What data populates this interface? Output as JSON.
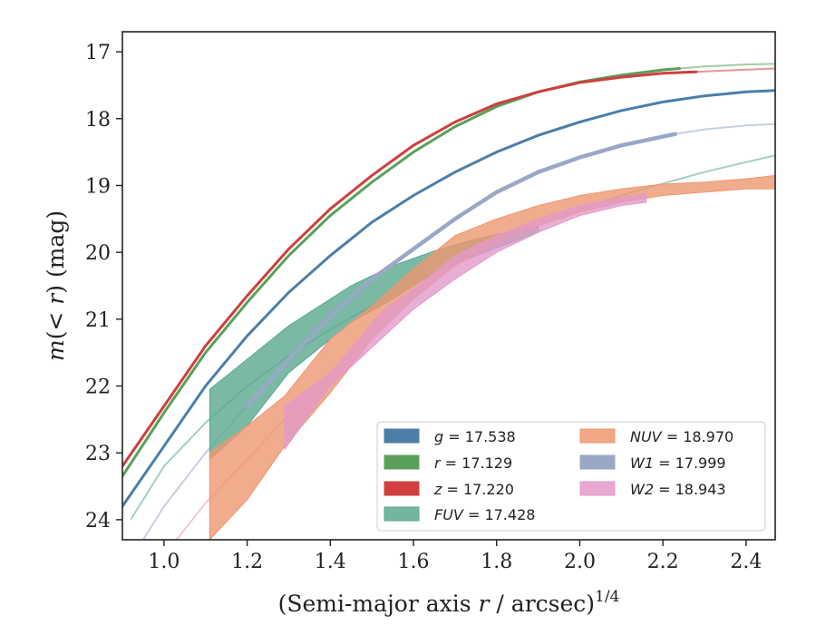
{
  "chart_data": {
    "type": "line",
    "xlabel": "(Semi-major axis r / arcsec)",
    "xlabel_italic_symbol": "r",
    "xlabel_exponent": "1/4",
    "ylabel": "m(< r) (mag)",
    "xlim": [
      0.9,
      2.47
    ],
    "ylim": [
      24.3,
      16.7
    ],
    "y_inverted": true,
    "x_ticks": [
      "1.0",
      "1.2",
      "1.4",
      "1.6",
      "1.8",
      "2.0",
      "2.2",
      "2.4"
    ],
    "y_ticks": [
      "17",
      "18",
      "19",
      "20",
      "21",
      "22",
      "23",
      "24"
    ],
    "grid": false,
    "legend_placement": "lower-right",
    "legend_columns": 2,
    "series": [
      {
        "name": "g = 17.538",
        "band": "g",
        "value": "17.538",
        "color": "#4c7ea8",
        "kind": "line",
        "data": [
          [
            0.9,
            23.8
          ],
          [
            1.0,
            22.9
          ],
          [
            1.1,
            22.0
          ],
          [
            1.2,
            21.25
          ],
          [
            1.3,
            20.6
          ],
          [
            1.4,
            20.05
          ],
          [
            1.5,
            19.55
          ],
          [
            1.6,
            19.15
          ],
          [
            1.7,
            18.8
          ],
          [
            1.8,
            18.5
          ],
          [
            1.9,
            18.25
          ],
          [
            2.0,
            18.05
          ],
          [
            2.1,
            17.88
          ],
          [
            2.2,
            17.75
          ],
          [
            2.3,
            17.66
          ],
          [
            2.4,
            17.6
          ],
          [
            2.47,
            17.58
          ]
        ]
      },
      {
        "name": "r = 17.129",
        "band": "r",
        "value": "17.129",
        "color": "#5aa05a",
        "kind": "line",
        "data": [
          [
            0.9,
            23.35
          ],
          [
            1.0,
            22.4
          ],
          [
            1.1,
            21.5
          ],
          [
            1.2,
            20.75
          ],
          [
            1.3,
            20.05
          ],
          [
            1.4,
            19.45
          ],
          [
            1.5,
            18.95
          ],
          [
            1.6,
            18.5
          ],
          [
            1.7,
            18.12
          ],
          [
            1.8,
            17.82
          ],
          [
            1.9,
            17.6
          ],
          [
            2.0,
            17.45
          ],
          [
            2.1,
            17.35
          ],
          [
            2.2,
            17.27
          ],
          [
            2.24,
            17.25
          ]
        ],
        "extrapolation": [
          [
            2.24,
            17.25
          ],
          [
            2.3,
            17.22
          ],
          [
            2.4,
            17.19
          ],
          [
            2.47,
            17.18
          ]
        ]
      },
      {
        "name": "z = 17.220",
        "band": "z",
        "value": "17.220",
        "color": "#cf3f3f",
        "kind": "line",
        "data": [
          [
            0.9,
            23.2
          ],
          [
            1.0,
            22.3
          ],
          [
            1.1,
            21.4
          ],
          [
            1.2,
            20.65
          ],
          [
            1.3,
            19.95
          ],
          [
            1.4,
            19.35
          ],
          [
            1.5,
            18.85
          ],
          [
            1.6,
            18.4
          ],
          [
            1.7,
            18.05
          ],
          [
            1.8,
            17.78
          ],
          [
            1.9,
            17.6
          ],
          [
            2.0,
            17.46
          ],
          [
            2.1,
            17.38
          ],
          [
            2.2,
            17.32
          ],
          [
            2.28,
            17.3
          ]
        ],
        "extrapolation": [
          [
            2.28,
            17.3
          ],
          [
            2.35,
            17.28
          ],
          [
            2.47,
            17.25
          ]
        ]
      },
      {
        "name": "FUV = 17.428",
        "band": "FUV",
        "value": "17.428",
        "color": "#5aa88e",
        "kind": "band",
        "data_x": [
          1.11,
          1.2,
          1.3,
          1.45,
          1.55,
          1.65,
          1.75,
          1.9
        ],
        "data_upper": [
          22.05,
          21.6,
          21.1,
          20.5,
          20.2,
          19.98,
          19.8,
          19.6
        ],
        "data_lower": [
          23.1,
          22.6,
          21.8,
          21.05,
          20.7,
          20.3,
          20.05,
          19.7
        ],
        "extrapolation": [
          [
            0.92,
            24.0
          ],
          [
            1.0,
            23.2
          ],
          [
            1.1,
            22.55
          ],
          [
            1.2,
            22.0
          ],
          [
            1.3,
            21.55
          ],
          [
            1.4,
            21.15
          ],
          [
            1.5,
            20.8
          ],
          [
            1.6,
            20.45
          ],
          [
            1.7,
            20.15
          ],
          [
            1.8,
            19.85
          ],
          [
            1.9,
            19.6
          ],
          [
            2.0,
            19.35
          ],
          [
            2.1,
            19.15
          ],
          [
            2.2,
            18.97
          ],
          [
            2.3,
            18.8
          ],
          [
            2.4,
            18.65
          ],
          [
            2.47,
            18.55
          ]
        ]
      },
      {
        "name": "NUV = 18.970",
        "band": "NUV",
        "value": "18.970",
        "color": "#ee9770",
        "kind": "band",
        "data_x": [
          1.11,
          1.2,
          1.29,
          1.4,
          1.5,
          1.6,
          1.7,
          1.8,
          1.9,
          2.0,
          2.1,
          2.2,
          2.3,
          2.4,
          2.47
        ],
        "data_upper": [
          23.0,
          22.6,
          22.15,
          21.3,
          20.8,
          20.25,
          19.75,
          19.5,
          19.3,
          19.15,
          19.05,
          18.98,
          18.95,
          18.9,
          18.85
        ],
        "data_lower": [
          24.3,
          23.7,
          22.9,
          22.1,
          21.3,
          20.7,
          20.2,
          19.85,
          19.6,
          19.4,
          19.25,
          19.15,
          19.1,
          19.05,
          19.05
        ],
        "extrapolation": []
      },
      {
        "name": "W1 = 17.999",
        "band": "W1",
        "value": "17.999",
        "color": "#9aa8c8",
        "kind": "line",
        "data": [
          [
            1.2,
            22.3
          ],
          [
            1.3,
            21.6
          ],
          [
            1.4,
            20.95
          ],
          [
            1.5,
            20.4
          ],
          [
            1.6,
            19.95
          ],
          [
            1.7,
            19.5
          ],
          [
            1.8,
            19.1
          ],
          [
            1.9,
            18.8
          ],
          [
            2.0,
            18.58
          ],
          [
            2.1,
            18.4
          ],
          [
            2.23,
            18.23
          ]
        ],
        "extrapolation": [
          [
            0.95,
            24.3
          ],
          [
            1.0,
            23.8
          ],
          [
            1.1,
            23.0
          ],
          [
            1.2,
            22.3
          ],
          [
            1.3,
            21.6
          ],
          [
            1.4,
            20.95
          ],
          [
            1.5,
            20.4
          ],
          [
            1.6,
            19.95
          ],
          [
            1.7,
            19.5
          ],
          [
            1.8,
            19.1
          ],
          [
            1.9,
            18.8
          ],
          [
            2.0,
            18.58
          ],
          [
            2.1,
            18.4
          ],
          [
            2.23,
            18.23
          ],
          [
            2.3,
            18.16
          ],
          [
            2.4,
            18.1
          ],
          [
            2.47,
            18.08
          ]
        ]
      },
      {
        "name": "W2 = 18.943",
        "band": "W2",
        "value": "18.943",
        "color": "#e49ac8",
        "kind": "band",
        "data_x": [
          1.29,
          1.4,
          1.53,
          1.6,
          1.7,
          1.8,
          1.9,
          2.0,
          2.1,
          2.16
        ],
        "data_upper": [
          22.3,
          21.8,
          20.85,
          20.55,
          20.05,
          19.75,
          19.5,
          19.3,
          19.18,
          19.12
        ],
        "data_lower": [
          22.95,
          22.0,
          21.25,
          20.85,
          20.4,
          20.0,
          19.7,
          19.45,
          19.3,
          19.25
        ],
        "extrapolation": [
          [
            1.03,
            24.3
          ],
          [
            1.1,
            23.75
          ],
          [
            1.2,
            23.1
          ],
          [
            1.29,
            22.5
          ]
        ]
      }
    ]
  }
}
